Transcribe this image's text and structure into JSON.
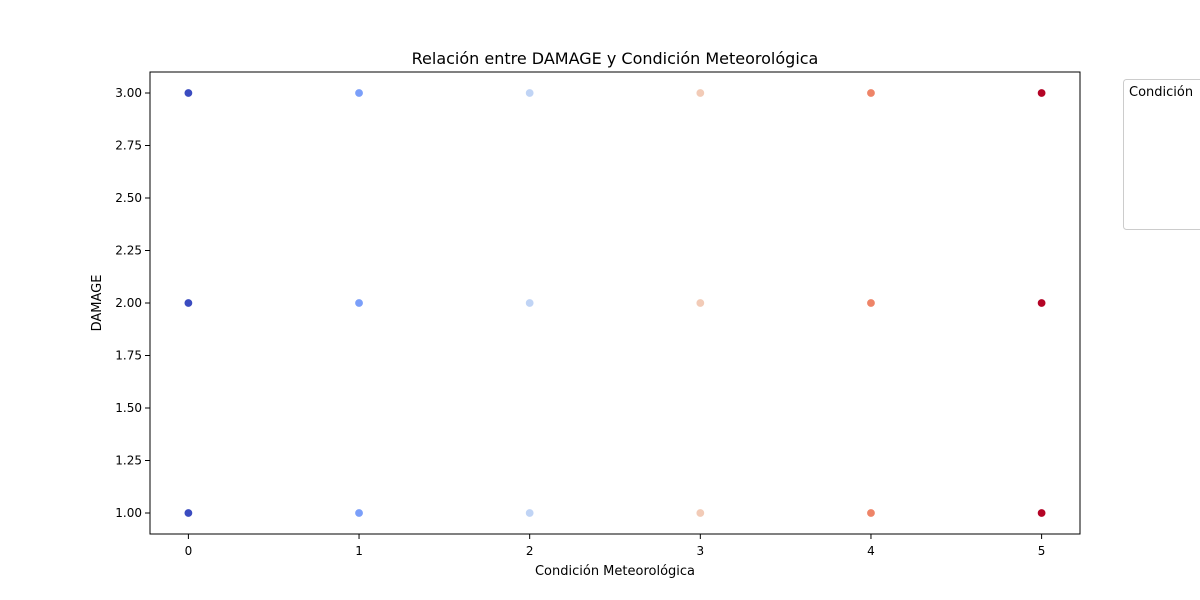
{
  "chart_data": {
    "type": "scatter",
    "title": "Relación entre DAMAGE y Condición Meteorológica",
    "xlabel": "Condición Meteorológica",
    "ylabel": "DAMAGE",
    "xlim": [
      -0.225,
      5.225
    ],
    "ylim": [
      0.9,
      3.1
    ],
    "x_ticks": [
      0,
      1,
      2,
      3,
      4,
      5
    ],
    "x_tick_labels": [
      "0",
      "1",
      "2",
      "3",
      "4",
      "5"
    ],
    "y_ticks": [
      1.0,
      1.25,
      1.5,
      1.75,
      2.0,
      2.25,
      2.5,
      2.75,
      3.0
    ],
    "y_tick_labels": [
      "1.00",
      "1.25",
      "1.50",
      "1.75",
      "2.00",
      "2.25",
      "2.50",
      "2.75",
      "3.00"
    ],
    "grid": false,
    "legend": {
      "title": "Condición",
      "placement": "outside-top-right"
    },
    "hue_colors": {
      "0": "#3b4cc0",
      "1": "#7b9ff9",
      "2": "#c0d4f5",
      "3": "#f2cbb7",
      "4": "#ee8468",
      "5": "#b40426"
    },
    "points": [
      {
        "x": 0,
        "y": 3
      },
      {
        "x": 0,
        "y": 2
      },
      {
        "x": 0,
        "y": 1
      },
      {
        "x": 1,
        "y": 3
      },
      {
        "x": 1,
        "y": 2
      },
      {
        "x": 1,
        "y": 1
      },
      {
        "x": 2,
        "y": 3
      },
      {
        "x": 2,
        "y": 2
      },
      {
        "x": 2,
        "y": 1
      },
      {
        "x": 3,
        "y": 3
      },
      {
        "x": 3,
        "y": 2
      },
      {
        "x": 3,
        "y": 1
      },
      {
        "x": 4,
        "y": 3
      },
      {
        "x": 4,
        "y": 2
      },
      {
        "x": 4,
        "y": 1
      },
      {
        "x": 5,
        "y": 3
      },
      {
        "x": 5,
        "y": 2
      },
      {
        "x": 5,
        "y": 1
      }
    ]
  }
}
